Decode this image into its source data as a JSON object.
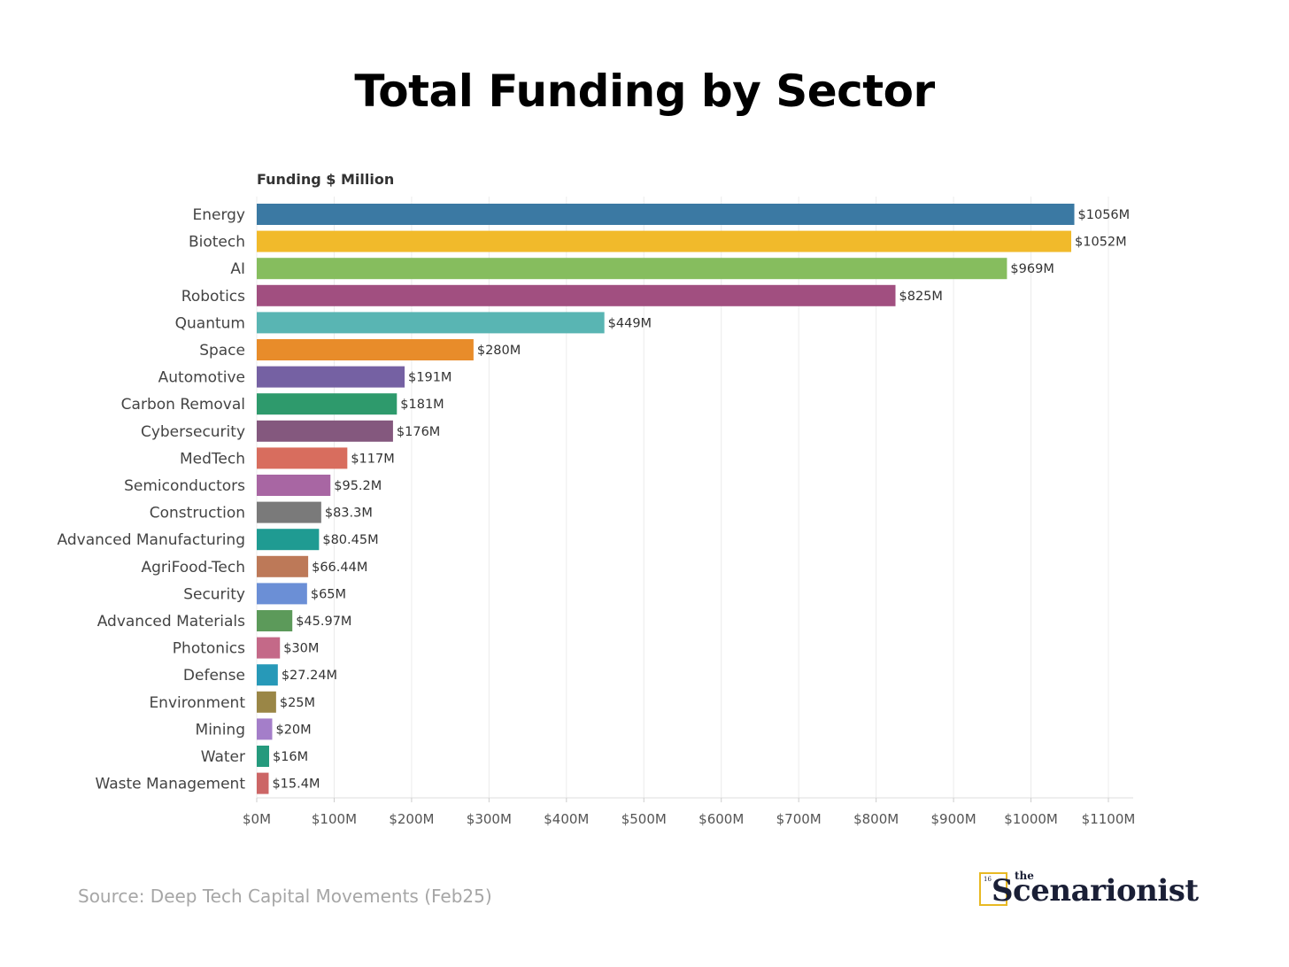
{
  "chart_data": {
    "type": "bar",
    "orientation": "horizontal",
    "title": "Total Funding by Sector",
    "xlabel": "",
    "ylabel": "Funding $ Million",
    "xlim": [
      0,
      1100
    ],
    "grid": true,
    "categories": [
      "Energy",
      "Biotech",
      "AI",
      "Robotics",
      "Quantum",
      "Space",
      "Automotive",
      "Carbon Removal",
      "Cybersecurity",
      "MedTech",
      "Semiconductors",
      "Construction",
      "Advanced Manufacturing",
      "AgriFood-Tech",
      "Security",
      "Advanced Materials",
      "Photonics",
      "Defense",
      "Environment",
      "Mining",
      "Water",
      "Waste Management"
    ],
    "values": [
      1056,
      1052,
      969,
      825,
      449,
      280,
      191,
      181,
      176,
      117,
      95.2,
      83.3,
      80.45,
      66.44,
      65,
      45.97,
      30,
      27.24,
      25,
      20,
      16,
      15.4
    ],
    "value_labels": [
      "$1056M",
      "$1052M",
      "$969M",
      "$825M",
      "$449M",
      "$280M",
      "$191M",
      "$181M",
      "$176M",
      "$117M",
      "$95.2M",
      "$83.3M",
      "$80.45M",
      "$66.44M",
      "$65M",
      "$45.97M",
      "$30M",
      "$27.24M",
      "$25M",
      "$20M",
      "$16M",
      "$15.4M"
    ],
    "colors": [
      "#3b79a3",
      "#f1ba2b",
      "#86bd5e",
      "#a14f80",
      "#59b5b3",
      "#e88c2a",
      "#7561a3",
      "#2e9a6c",
      "#84587e",
      "#d86d5e",
      "#a866a3",
      "#7a7a7a",
      "#1f9b92",
      "#bd7958",
      "#6b8fd6",
      "#5c9a5a",
      "#c46988",
      "#2799b8",
      "#9a8646",
      "#a47ec9",
      "#259a7d",
      "#cc6666"
    ],
    "x_ticks": [
      0,
      100,
      200,
      300,
      400,
      500,
      600,
      700,
      800,
      900,
      1000,
      1100
    ],
    "x_tick_labels": [
      "$0M",
      "$100M",
      "$200M",
      "$300M",
      "$400M",
      "$500M",
      "$600M",
      "$700M",
      "$800M",
      "$900M",
      "$1000M",
      "$1100M"
    ]
  },
  "source": "Source: Deep Tech Capital Movements (Feb25)",
  "logo": {
    "number": "16",
    "the": "the",
    "word": "Scenarionist",
    "accent_color": "#e8b923",
    "text_color": "#1a1f36"
  }
}
